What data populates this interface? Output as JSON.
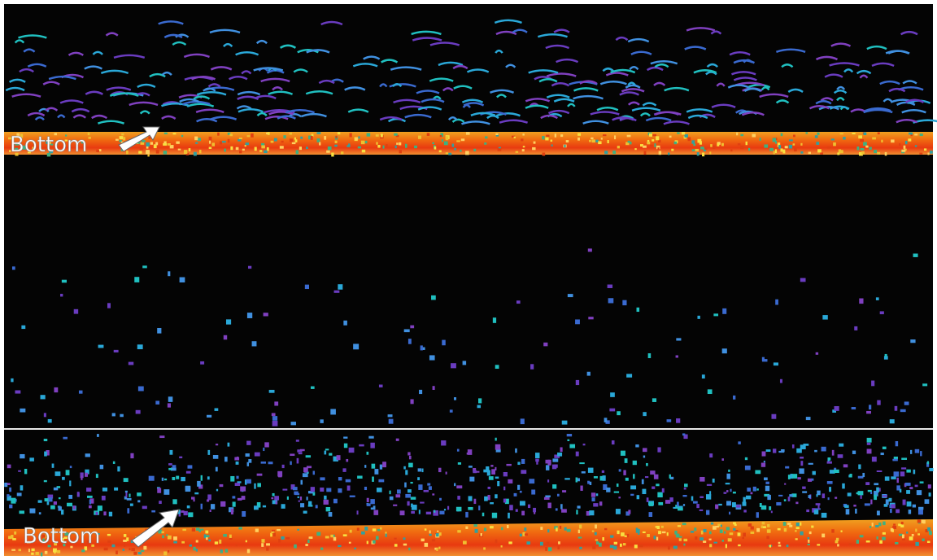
{
  "annotations": [
    "Bottom",
    "Bottom"
  ]
}
